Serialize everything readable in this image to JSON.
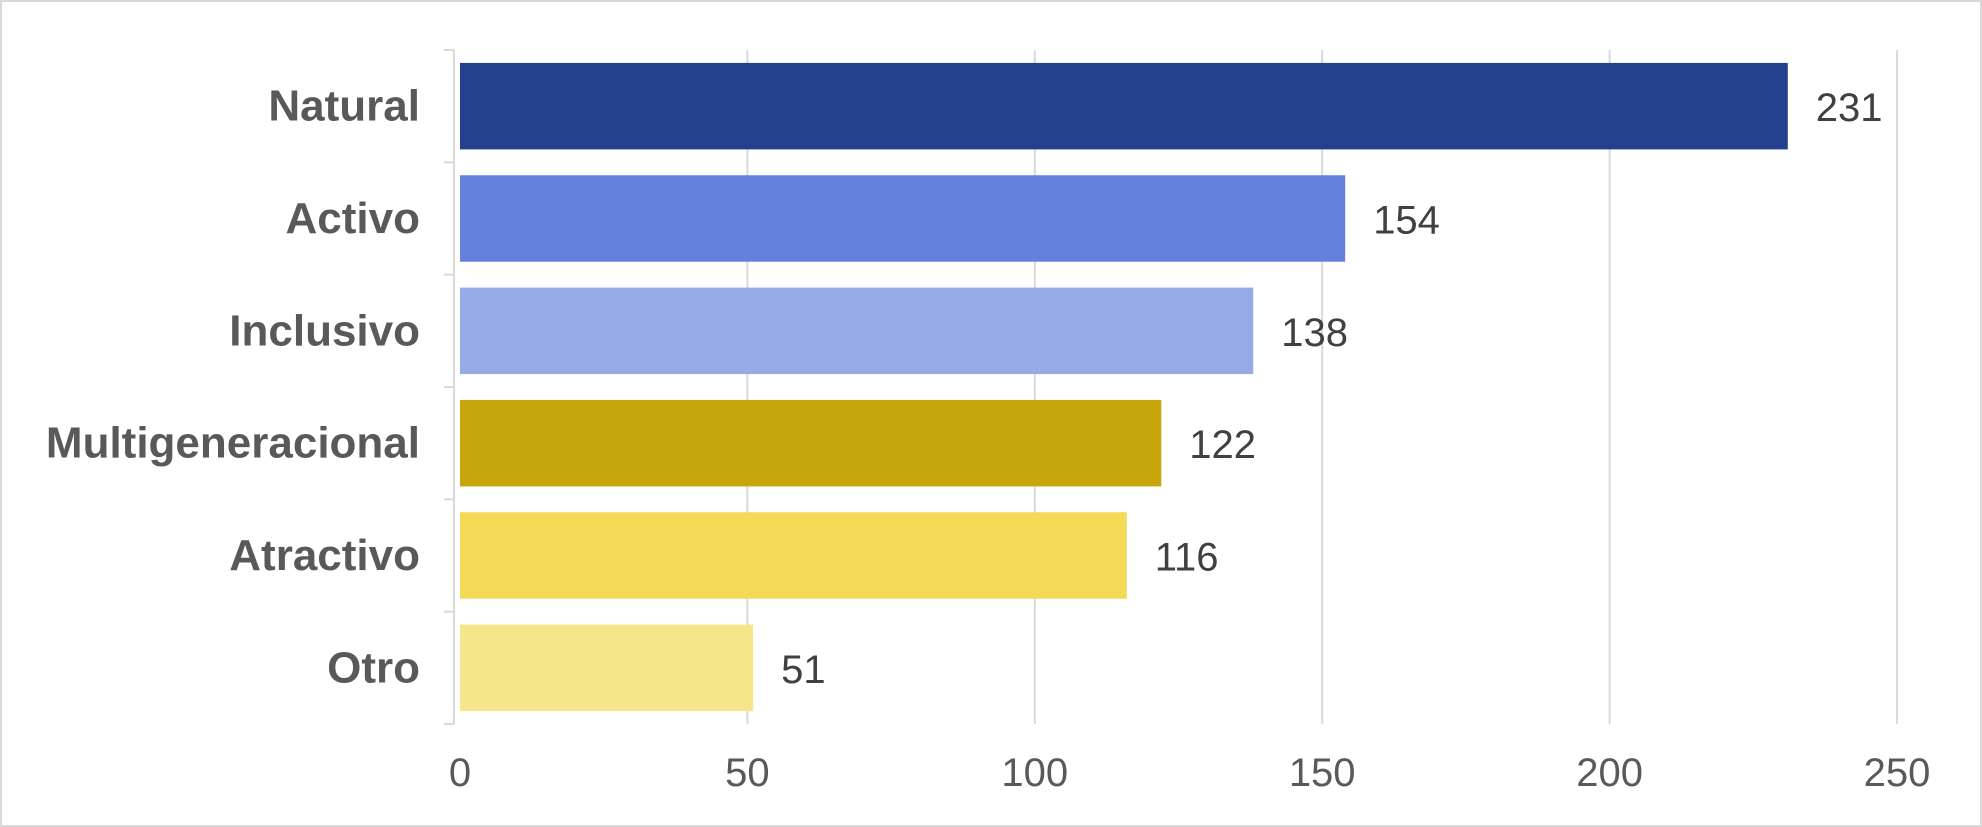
{
  "chart_data": {
    "type": "bar",
    "orientation": "horizontal",
    "title": "",
    "xlabel": "",
    "ylabel": "",
    "categories": [
      "Natural",
      "Activo",
      "Inclusivo",
      "Multigeneracional",
      "Atractivo",
      "Otro"
    ],
    "values": [
      231,
      154,
      138,
      122,
      116,
      51
    ],
    "colors": [
      "#25408f",
      "#6381db",
      "#96aae5",
      "#c5a50a",
      "#f3d955",
      "#f6e68b"
    ],
    "xlim": [
      0,
      250
    ],
    "xticks": [
      0,
      50,
      100,
      150,
      200,
      250
    ],
    "grid": "vertical",
    "legend": "none",
    "data_labels": true
  }
}
